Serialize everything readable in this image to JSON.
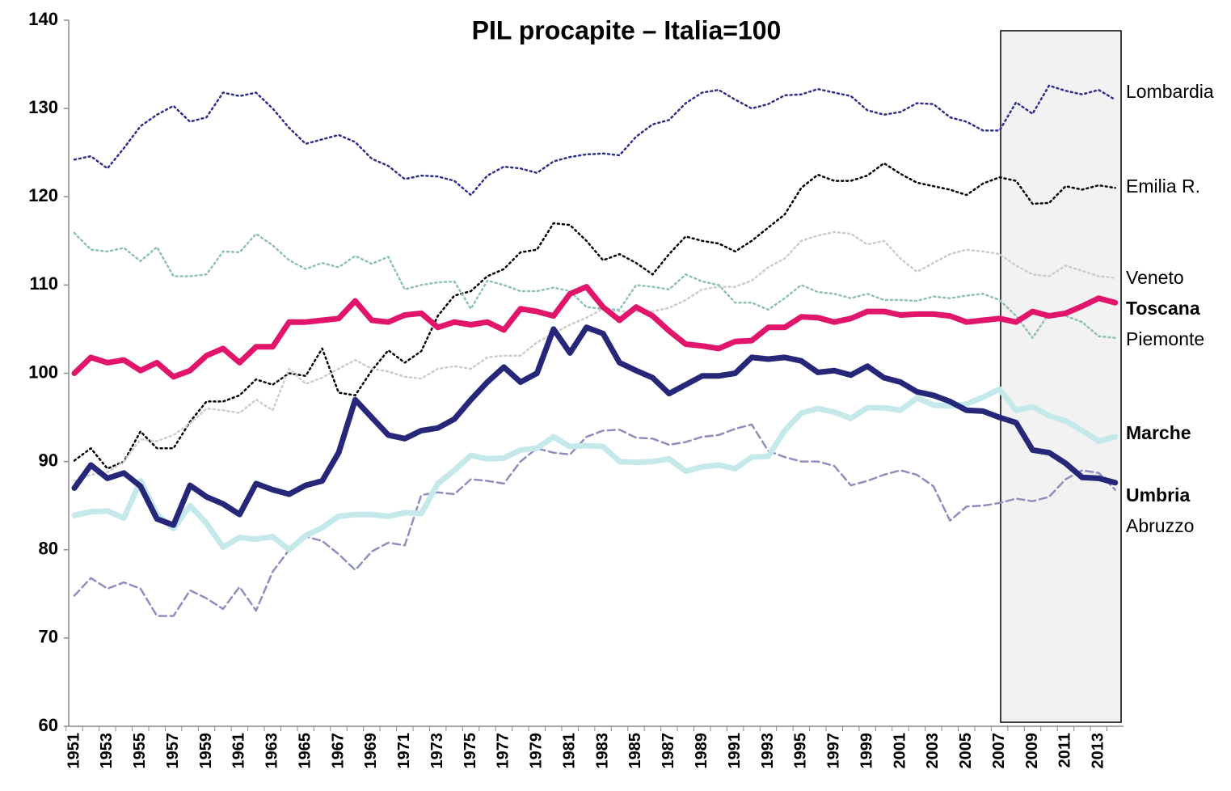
{
  "chart_data": {
    "type": "line",
    "title": "PIL procapite – Italia=100",
    "categories": [
      "1951",
      null,
      "1953",
      null,
      "1955",
      null,
      "1957",
      null,
      "1959",
      null,
      "1961",
      null,
      "1963",
      null,
      "1965",
      null,
      "1967",
      null,
      "1969",
      null,
      "1971",
      null,
      "1973",
      null,
      "1975",
      null,
      "1977",
      null,
      "1979",
      null,
      "1981",
      null,
      "1983",
      null,
      "1985",
      null,
      "1987",
      null,
      "1989",
      null,
      "1991",
      null,
      "1993",
      null,
      "1995",
      null,
      "1997",
      null,
      "1999",
      null,
      "2001",
      null,
      "2003",
      null,
      "2005",
      null,
      "2007",
      null,
      "2009",
      null,
      "2011",
      null,
      "2013",
      null
    ],
    "ylim": [
      60,
      140
    ],
    "yticks": [
      60,
      70,
      80,
      90,
      100,
      110,
      120,
      130,
      140
    ],
    "grid": false,
    "series": [
      {
        "name": "Lombardia",
        "color": "#2e2e8a",
        "linestyle": "dotted",
        "linewidth": 2.5,
        "values": [
          124.2,
          124.6,
          123.2,
          125.5,
          128,
          129.3,
          130.3,
          128.5,
          129,
          131.8,
          131.4,
          131.8,
          130,
          127.8,
          126,
          126.5,
          127,
          126.2,
          124.3,
          123.5,
          122,
          122.4,
          122.3,
          121.8,
          120.2,
          122.4,
          123.4,
          123.2,
          122.7,
          124,
          124.5,
          124.8,
          124.9,
          124.7,
          126.8,
          128.2,
          128.7,
          130.6,
          131.8,
          132.1,
          131,
          130,
          130.5,
          131.5,
          131.6,
          132.2,
          131.8,
          131.4,
          129.8,
          129.3,
          129.6,
          130.6,
          130.5,
          129,
          128.5,
          127.5,
          127.5,
          130.7,
          129.4,
          132.6,
          132,
          131.6,
          132.1,
          131
        ]
      },
      {
        "name": "Emilia R.",
        "color": "#000000",
        "linestyle": "dotted",
        "linewidth": 2.5,
        "values": [
          90.1,
          91.5,
          89.2,
          90,
          93.4,
          91.5,
          91.5,
          94.5,
          96.8,
          96.8,
          97.5,
          99.3,
          98.7,
          100,
          99.7,
          102.8,
          97.8,
          97.5,
          100.3,
          102.6,
          101.2,
          102.5,
          106.5,
          108.8,
          109.3,
          111,
          111.8,
          113.7,
          114,
          117,
          116.8,
          115,
          112.8,
          113.5,
          112.5,
          111.2,
          113.5,
          115.5,
          115,
          114.7,
          113.8,
          115,
          116.5,
          118,
          121,
          122.5,
          121.8,
          121.8,
          122.4,
          123.8,
          122.6,
          121.6,
          121.2,
          120.8,
          120.2,
          121.5,
          122.2,
          121.8,
          119.2,
          119.3,
          121.2,
          120.8,
          121.3,
          121
        ]
      },
      {
        "name": "Veneto",
        "color": "#cccccc",
        "linestyle": "dotted",
        "linewidth": 2.5,
        "values": [
          87.8,
          88.5,
          88.8,
          90,
          92.5,
          92.3,
          93,
          94.3,
          96,
          95.8,
          95.5,
          97,
          95.8,
          100.5,
          98.8,
          99.5,
          100.5,
          101.5,
          100.5,
          100.2,
          99.6,
          99.4,
          100.5,
          100.8,
          100.5,
          101.8,
          102,
          102,
          103.5,
          104.5,
          105.5,
          106.3,
          107.3,
          107,
          107,
          107,
          107.4,
          108.3,
          109.5,
          109.8,
          109.8,
          110.5,
          112,
          113,
          115,
          115.6,
          116,
          115.8,
          114.6,
          115,
          113,
          111.5,
          112.5,
          113.5,
          114,
          113.8,
          113.5,
          112.2,
          111.2,
          111,
          112.2,
          111.6,
          111,
          110.8
        ]
      },
      {
        "name": "Piemonte",
        "color": "#8fbfb8",
        "linestyle": "dotted",
        "linewidth": 2.5,
        "values": [
          115.9,
          114,
          113.8,
          114.2,
          112.7,
          114.3,
          111,
          111,
          111.2,
          113.8,
          113.7,
          115.8,
          114.5,
          112.8,
          111.8,
          112.5,
          112,
          113.3,
          112.4,
          113.2,
          109.5,
          110,
          110.3,
          110.4,
          107.3,
          110.5,
          110,
          109.3,
          109.3,
          109.7,
          109.3,
          107.5,
          107.3,
          107.2,
          110,
          109.8,
          109.5,
          111.2,
          110.4,
          110,
          108,
          108,
          107.2,
          108.5,
          110,
          109.2,
          109,
          108.5,
          109,
          108.3,
          108.3,
          108.2,
          108.7,
          108.5,
          108.8,
          109,
          108.3,
          106.5,
          104,
          106.8,
          106.5,
          105.8,
          104.2,
          104
        ]
      },
      {
        "name": "Abruzzo",
        "color": "#8f8fbf",
        "linestyle": "dashed",
        "linewidth": 2.5,
        "values": [
          74.8,
          76.8,
          75.6,
          76.3,
          75.6,
          72.5,
          72.5,
          75.4,
          74.5,
          73.3,
          75.8,
          73.1,
          77.5,
          80,
          81.5,
          81,
          79.5,
          77.7,
          79.8,
          80.8,
          80.5,
          86.2,
          86.5,
          86.3,
          88,
          87.8,
          87.5,
          90,
          91.5,
          91,
          90.8,
          92.8,
          93.5,
          93.6,
          92.7,
          92.6,
          91.9,
          92.2,
          92.8,
          93,
          93.7,
          94.2,
          91.2,
          90.5,
          90,
          90,
          89.5,
          87.3,
          87.8,
          88.5,
          89,
          88.5,
          87.2,
          83.3,
          84.9,
          85,
          85.3,
          85.8,
          85.5,
          86,
          88,
          89,
          88.7,
          86.8
        ]
      },
      {
        "name": "Marche",
        "color": "#c5e8ea",
        "linestyle": "solid",
        "linewidth": 7,
        "values": [
          83.9,
          84.3,
          84.4,
          83.6,
          87.8,
          84,
          82.4,
          85,
          83,
          80.3,
          81.4,
          81.2,
          81.5,
          80,
          81.6,
          82.5,
          83.8,
          84,
          84,
          83.8,
          84.2,
          84.1,
          87.5,
          89,
          90.7,
          90.3,
          90.4,
          91.3,
          91.5,
          92.8,
          91.7,
          91.8,
          91.7,
          90,
          89.9,
          90,
          90.3,
          88.9,
          89.4,
          89.6,
          89.2,
          90.5,
          90.6,
          93.5,
          95.5,
          96,
          95.6,
          94.9,
          96.1,
          96.1,
          95.8,
          97.2,
          96.4,
          96.3,
          96.5,
          97.3,
          98.2,
          95.8,
          96.2,
          95.2,
          94.6,
          93.5,
          92.3,
          92.8
        ]
      },
      {
        "name": "Toscana",
        "color": "#e0156b",
        "linestyle": "solid",
        "linewidth": 7,
        "values": [
          100,
          101.8,
          101.2,
          101.5,
          100.3,
          101.2,
          99.6,
          100.3,
          102,
          102.8,
          101.2,
          103,
          103,
          105.8,
          105.8,
          106,
          106.2,
          108.2,
          106,
          105.8,
          106.6,
          106.8,
          105.2,
          105.8,
          105.5,
          105.8,
          104.9,
          107.3,
          107,
          106.5,
          109,
          109.8,
          107.5,
          106,
          107.5,
          106.5,
          104.8,
          103.3,
          103.1,
          102.8,
          103.6,
          103.7,
          105.2,
          105.2,
          106.4,
          106.3,
          105.8,
          106.2,
          107,
          107,
          106.6,
          106.7,
          106.7,
          106.5,
          105.8,
          106,
          106.2,
          105.8,
          107,
          106.5,
          106.8,
          107.6,
          108.5,
          108
        ]
      },
      {
        "name": "Umbria",
        "color": "#27277a",
        "linestyle": "solid",
        "linewidth": 7,
        "values": [
          87,
          89.6,
          88.1,
          88.7,
          87.2,
          83.5,
          82.8,
          87.3,
          86,
          85.2,
          84,
          87.5,
          86.8,
          86.3,
          87.3,
          87.8,
          91,
          97,
          95,
          93,
          92.6,
          93.5,
          93.8,
          94.8,
          97,
          99,
          100.7,
          99,
          100,
          105,
          102.3,
          105.2,
          104.5,
          101.2,
          100.3,
          99.5,
          97.7,
          98.7,
          99.7,
          99.7,
          100,
          101.8,
          101.6,
          101.8,
          101.4,
          100.1,
          100.3,
          99.8,
          100.8,
          99.5,
          99,
          97.9,
          97.5,
          96.8,
          95.8,
          95.7,
          95,
          94.4,
          91.3,
          91,
          89.8,
          88.2,
          88.1,
          87.6
        ]
      }
    ]
  }
}
